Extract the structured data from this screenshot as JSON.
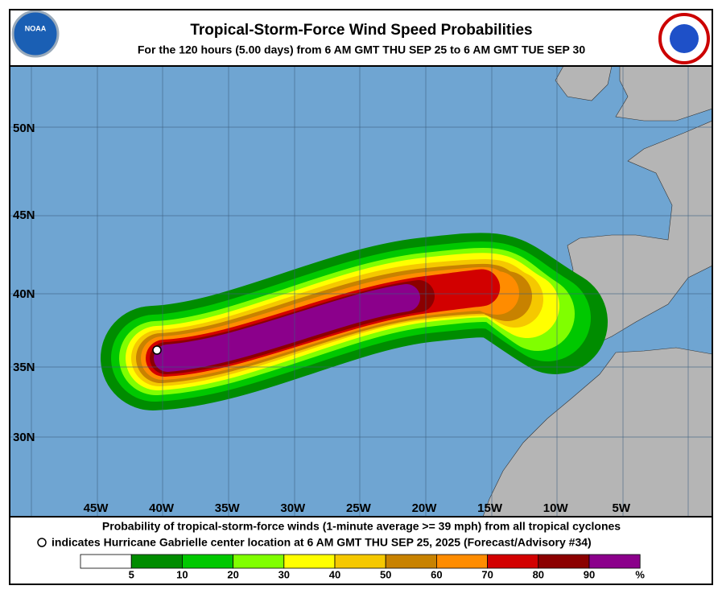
{
  "header": {
    "title": "Tropical-Storm-Force Wind Speed Probabilities",
    "subtitle": "For the 120 hours (5.00 days) from 6 AM GMT THU SEP 25 to 6 AM GMT TUE SEP 30"
  },
  "map": {
    "lat_labels": [
      "50N",
      "45N",
      "40N",
      "35N",
      "30N"
    ],
    "lon_labels": [
      "45W",
      "40W",
      "35W",
      "30W",
      "25W",
      "20W",
      "15W",
      "10W",
      "5W"
    ]
  },
  "footer": {
    "line1": "Probability of tropical-storm-force winds (1-minute average >= 39 mph) from all tropical cyclones",
    "line2": "indicates Hurricane Gabrielle center location at 6 AM GMT THU SEP 25, 2025 (Forecast/Advisory #34)"
  },
  "legend": {
    "ticks": [
      5,
      10,
      20,
      30,
      40,
      50,
      60,
      70,
      80,
      90
    ],
    "unit": "%",
    "colors": [
      "#ffffff",
      "#008c00",
      "#00c800",
      "#80ff00",
      "#ffff00",
      "#f5c800",
      "#c88200",
      "#ff8c00",
      "#d20000",
      "#8b0000",
      "#8b008b"
    ]
  }
}
